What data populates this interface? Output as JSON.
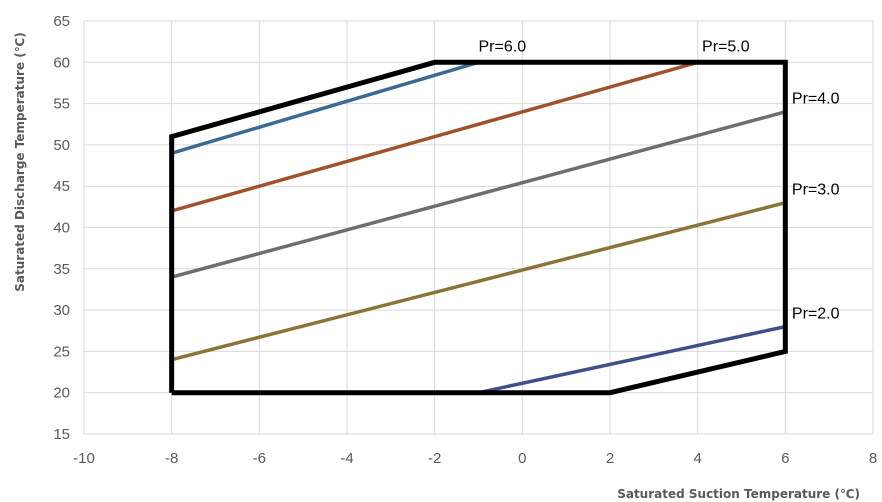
{
  "chart_data": {
    "type": "line",
    "title": "",
    "xlabel": "Saturated Suction Temperature (℃)",
    "ylabel": "Saturated Discharge Temperature (℃)",
    "xlim": [
      -10,
      8
    ],
    "ylim": [
      15,
      65
    ],
    "x_ticks": [
      -10,
      -8,
      -6,
      -4,
      -2,
      0,
      2,
      4,
      6,
      8
    ],
    "y_ticks": [
      15,
      20,
      25,
      30,
      35,
      40,
      45,
      50,
      55,
      60,
      65
    ],
    "x_tick_labels": [
      "-10",
      "-8",
      "-6",
      "-4",
      "-2",
      "0",
      "2",
      "4",
      "6",
      "8"
    ],
    "y_tick_labels": [
      "15",
      "20",
      "25",
      "30",
      "35",
      "40",
      "45",
      "50",
      "55",
      "60",
      "65"
    ],
    "grid": true,
    "legend": "none",
    "envelope": {
      "color": "#000000",
      "x": [
        -8,
        -8,
        -2,
        6,
        6,
        2,
        -8
      ],
      "y": [
        20,
        51,
        60,
        60,
        25,
        20,
        20
      ]
    },
    "series": [
      {
        "name": "Pr=6.0",
        "color": "#3A6A96",
        "x": [
          -8,
          -1
        ],
        "y": [
          49,
          60
        ]
      },
      {
        "name": "Pr=5.0",
        "color": "#A0522D",
        "x": [
          -8,
          4
        ],
        "y": [
          42,
          60
        ]
      },
      {
        "name": "Pr=4.0",
        "color": "#6E6E6E",
        "x": [
          -8,
          6
        ],
        "y": [
          34,
          54
        ]
      },
      {
        "name": "Pr=3.0",
        "color": "#8C7438",
        "x": [
          -8,
          6
        ],
        "y": [
          24,
          43
        ]
      },
      {
        "name": "Pr=2.0",
        "color": "#3F4F8A",
        "x": [
          -1,
          6
        ],
        "y": [
          20,
          28
        ]
      }
    ],
    "annotations": [
      {
        "text": "Pr=6.0",
        "x": -1.0,
        "y": 61.3
      },
      {
        "text": "Pr=5.0",
        "x": 4.1,
        "y": 61.3
      },
      {
        "text": "Pr=4.0",
        "x": 6.15,
        "y": 55.0
      },
      {
        "text": "Pr=3.0",
        "x": 6.15,
        "y": 44.0
      },
      {
        "text": "Pr=2.0",
        "x": 6.15,
        "y": 29.0
      }
    ]
  }
}
